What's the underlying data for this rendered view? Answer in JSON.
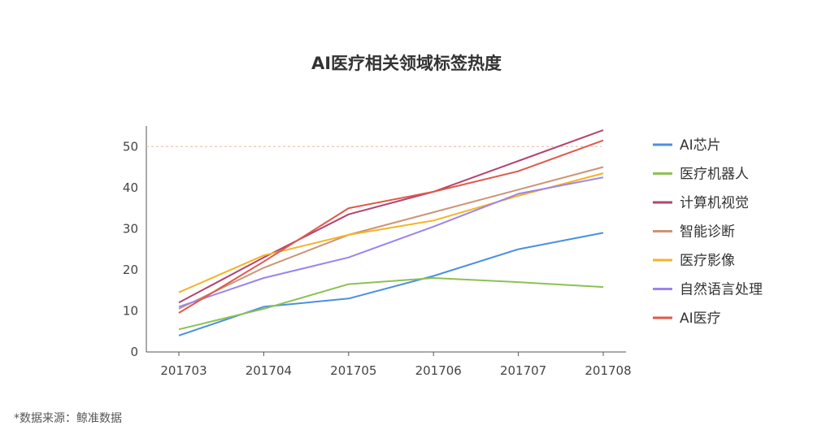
{
  "chart_data": {
    "type": "line",
    "title": "AI医疗相关领域标签热度",
    "xlabel": "",
    "ylabel": "",
    "categories": [
      "201703",
      "201704",
      "201705",
      "201706",
      "201707",
      "201708"
    ],
    "ylim": [
      0,
      55
    ],
    "yticks": [
      0,
      10,
      20,
      30,
      40,
      50
    ],
    "reference_line": 50,
    "grid": false,
    "legend_position": "right",
    "series": [
      {
        "name": "AI芯片",
        "color": "#4a90e2",
        "values": [
          4,
          11,
          13,
          18.5,
          25,
          29
        ]
      },
      {
        "name": "医疗机器人",
        "color": "#8dc152",
        "values": [
          5.5,
          10.5,
          16.5,
          18,
          17,
          15.8
        ]
      },
      {
        "name": "计算机视觉",
        "color": "#b2456e",
        "values": [
          12,
          23,
          33.5,
          39,
          46.5,
          54
        ]
      },
      {
        "name": "智能诊断",
        "color": "#cc9475",
        "values": [
          10.5,
          20.5,
          28.5,
          34,
          39.5,
          45
        ]
      },
      {
        "name": "医疗影像",
        "color": "#f5b324",
        "values": [
          14.5,
          23.5,
          28.5,
          32,
          38,
          43.5
        ]
      },
      {
        "name": "自然语言处理",
        "color": "#9b84ec",
        "values": [
          11,
          18,
          23,
          30.5,
          38.5,
          42.5
        ]
      },
      {
        "name": "AI医疗",
        "color": "#e0584a",
        "values": [
          9.5,
          22,
          35,
          39,
          44,
          51.5
        ]
      }
    ]
  },
  "footer": {
    "source": "*数据来源：鲸准数据"
  }
}
